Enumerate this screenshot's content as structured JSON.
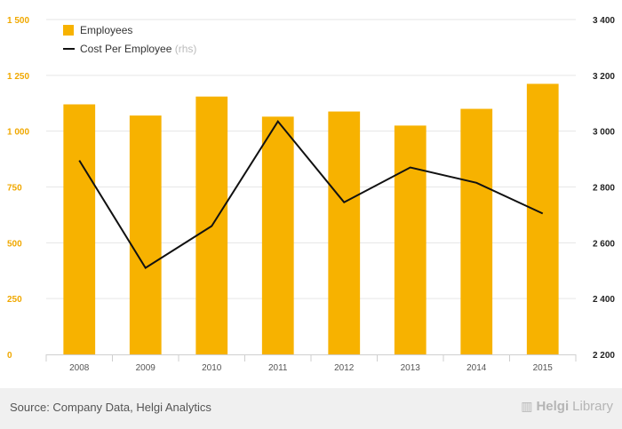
{
  "chart_data": {
    "type": "bar",
    "categories": [
      "2008",
      "2009",
      "2010",
      "2011",
      "2012",
      "2013",
      "2014",
      "2015"
    ],
    "series": [
      {
        "name": "Employees",
        "type": "bar",
        "axis": "left",
        "color": "#f7b200",
        "values": [
          1120,
          1070,
          1155,
          1065,
          1088,
          1025,
          1100,
          1212
        ]
      },
      {
        "name": "Cost Per Employee",
        "name_suffix": "(rhs)",
        "type": "line",
        "axis": "right",
        "color": "#111111",
        "values": [
          2895,
          2510,
          2660,
          3035,
          2745,
          2870,
          2815,
          2705
        ]
      }
    ],
    "y_left": {
      "range": [
        0,
        1500
      ],
      "ticks": [
        0,
        250,
        500,
        750,
        1000,
        1250,
        1500
      ],
      "tick_labels": [
        "0",
        "250",
        "500",
        "750",
        "1 000",
        "1 250",
        "1 500"
      ],
      "color": "#f0a800"
    },
    "y_right": {
      "range": [
        2200,
        3400
      ],
      "ticks": [
        2200,
        2400,
        2600,
        2800,
        3000,
        3200,
        3400
      ],
      "tick_labels": [
        "2 200",
        "2 400",
        "2 600",
        "2 800",
        "3 000",
        "3 200",
        "3 400"
      ],
      "color": "#222222"
    },
    "grid": true,
    "legend": "top-left"
  },
  "footer": {
    "source": "Source: Company Data, Helgi Analytics",
    "brand_bold": "Helgi",
    "brand_thin": "Library"
  }
}
